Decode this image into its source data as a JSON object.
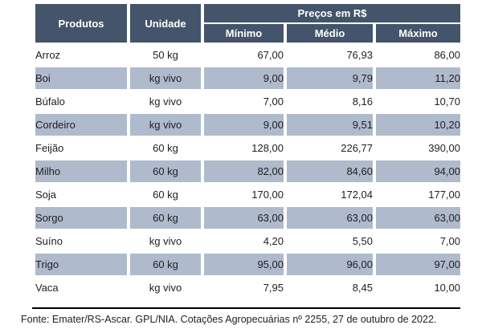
{
  "table": {
    "header": {
      "produtos": "Produtos",
      "unidade": "Unidade",
      "precos_group": "Preços em R$",
      "minimo": "Mínimo",
      "medio": "Médio",
      "maximo": "Máximo"
    },
    "rows": [
      {
        "produto": "Arroz",
        "unidade": "50 kg",
        "minimo": "67,00",
        "medio": "76,93",
        "maximo": "86,00"
      },
      {
        "produto": "Boi",
        "unidade": "kg vivo",
        "minimo": "9,00",
        "medio": "9,79",
        "maximo": "11,20"
      },
      {
        "produto": "Búfalo",
        "unidade": "kg vivo",
        "minimo": "7,00",
        "medio": "8,16",
        "maximo": "10,70"
      },
      {
        "produto": "Cordeiro",
        "unidade": "kg vivo",
        "minimo": "9,00",
        "medio": "9,51",
        "maximo": "10,20"
      },
      {
        "produto": "Feijão",
        "unidade": "60 kg",
        "minimo": "128,00",
        "medio": "226,77",
        "maximo": "390,00"
      },
      {
        "produto": "Milho",
        "unidade": "60 kg",
        "minimo": "82,00",
        "medio": "84,60",
        "maximo": "94,00"
      },
      {
        "produto": "Soja",
        "unidade": "60 kg",
        "minimo": "170,00",
        "medio": "172,04",
        "maximo": "177,00"
      },
      {
        "produto": "Sorgo",
        "unidade": "60 kg",
        "minimo": "63,00",
        "medio": "63,00",
        "maximo": "63,00"
      },
      {
        "produto": "Suíno",
        "unidade": "kg vivo",
        "minimo": "4,20",
        "medio": "5,50",
        "maximo": "7,00"
      },
      {
        "produto": "Trigo",
        "unidade": "60 kg",
        "minimo": "95,00",
        "medio": "96,00",
        "maximo": "97,00"
      },
      {
        "produto": "Vaca",
        "unidade": "kg vivo",
        "minimo": "7,95",
        "medio": "8,45",
        "maximo": "10,00"
      }
    ]
  },
  "footer": {
    "source": "Fonte: Emater/RS-Ascar. GPL/NIA. Cotações Agropecuárias nº 2255, 27 de outubro de 2022."
  },
  "colors": {
    "header_bg": "#44546A",
    "header_text": "#FFFFFF",
    "row_shaded_bg": "#AFBACD",
    "body_text": "#1F1F1F",
    "rule": "#000000"
  }
}
